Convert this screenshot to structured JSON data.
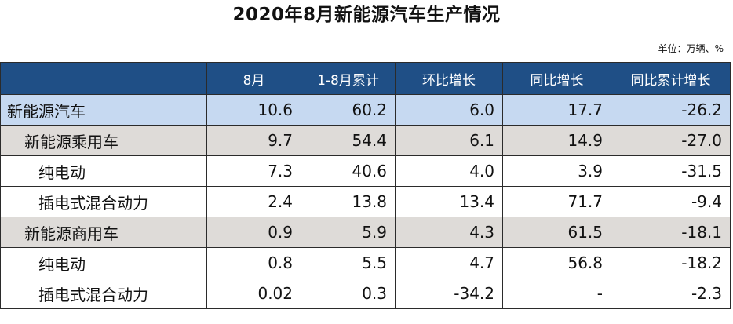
{
  "title": "2020年8月新能源汽车生产情况",
  "unit": "单位：万辆、%",
  "table": {
    "headers": [
      "",
      "8月",
      "1-8月累计",
      "环比增长",
      "同比增长",
      "同比累计增长"
    ],
    "rows": [
      {
        "label": "新能源汽车",
        "level": 0,
        "values": [
          "10.6",
          "60.2",
          "6.0",
          "17.7",
          "-26.2"
        ]
      },
      {
        "label": "新能源乘用车",
        "level": 1,
        "values": [
          "9.7",
          "54.4",
          "6.1",
          "14.9",
          "-27.0"
        ]
      },
      {
        "label": "纯电动",
        "level": 2,
        "values": [
          "7.3",
          "40.6",
          "4.0",
          "3.9",
          "-31.5"
        ]
      },
      {
        "label": "插电式混合动力",
        "level": 2,
        "values": [
          "2.4",
          "13.8",
          "13.4",
          "71.7",
          "-9.4"
        ]
      },
      {
        "label": "新能源商用车",
        "level": 1,
        "values": [
          "0.9",
          "5.9",
          "4.3",
          "61.5",
          "-18.1"
        ]
      },
      {
        "label": "纯电动",
        "level": 2,
        "values": [
          "0.8",
          "5.5",
          "4.7",
          "56.8",
          "-18.2"
        ]
      },
      {
        "label": "插电式混合动力",
        "level": 2,
        "values": [
          "0.02",
          "0.3",
          "-34.2",
          "-",
          "-2.3"
        ]
      }
    ]
  }
}
